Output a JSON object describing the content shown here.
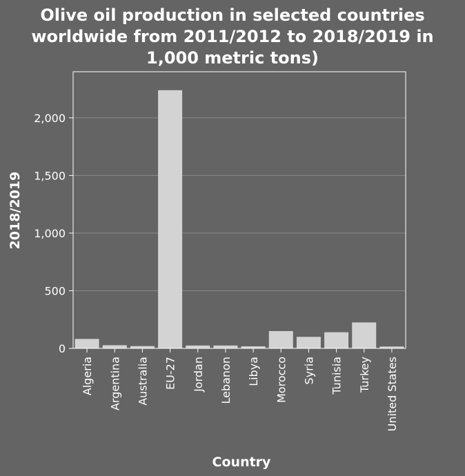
{
  "chart_data": {
    "type": "bar",
    "title_lines": [
      "Olive oil production in selected countries",
      "worldwide from 2011/2012 to 2018/2019 in",
      "1,000 metric tons)"
    ],
    "xlabel": "Country",
    "ylabel": "2018/2019",
    "categories": [
      "Algeria",
      "Argentina",
      "Australia",
      "EU-27",
      "Jordan",
      "Lebanon",
      "Libya",
      "Morocco",
      "Syria",
      "Tunisia",
      "Turkey",
      "United States"
    ],
    "values": [
      82,
      27.5,
      20,
      2240,
      25,
      25,
      18,
      150,
      100,
      140,
      225,
      16
    ],
    "ylim": [
      0,
      2400
    ],
    "yticks": [
      0,
      500,
      1000,
      1500,
      2000
    ],
    "ytick_labels": [
      "0",
      "500",
      "1,000",
      "1,500",
      "2,000"
    ],
    "grid": true,
    "colors": {
      "background": "#646464",
      "bar": "#d3d3d3",
      "grid": "#8a8a8a",
      "text": "#ffffff"
    }
  }
}
